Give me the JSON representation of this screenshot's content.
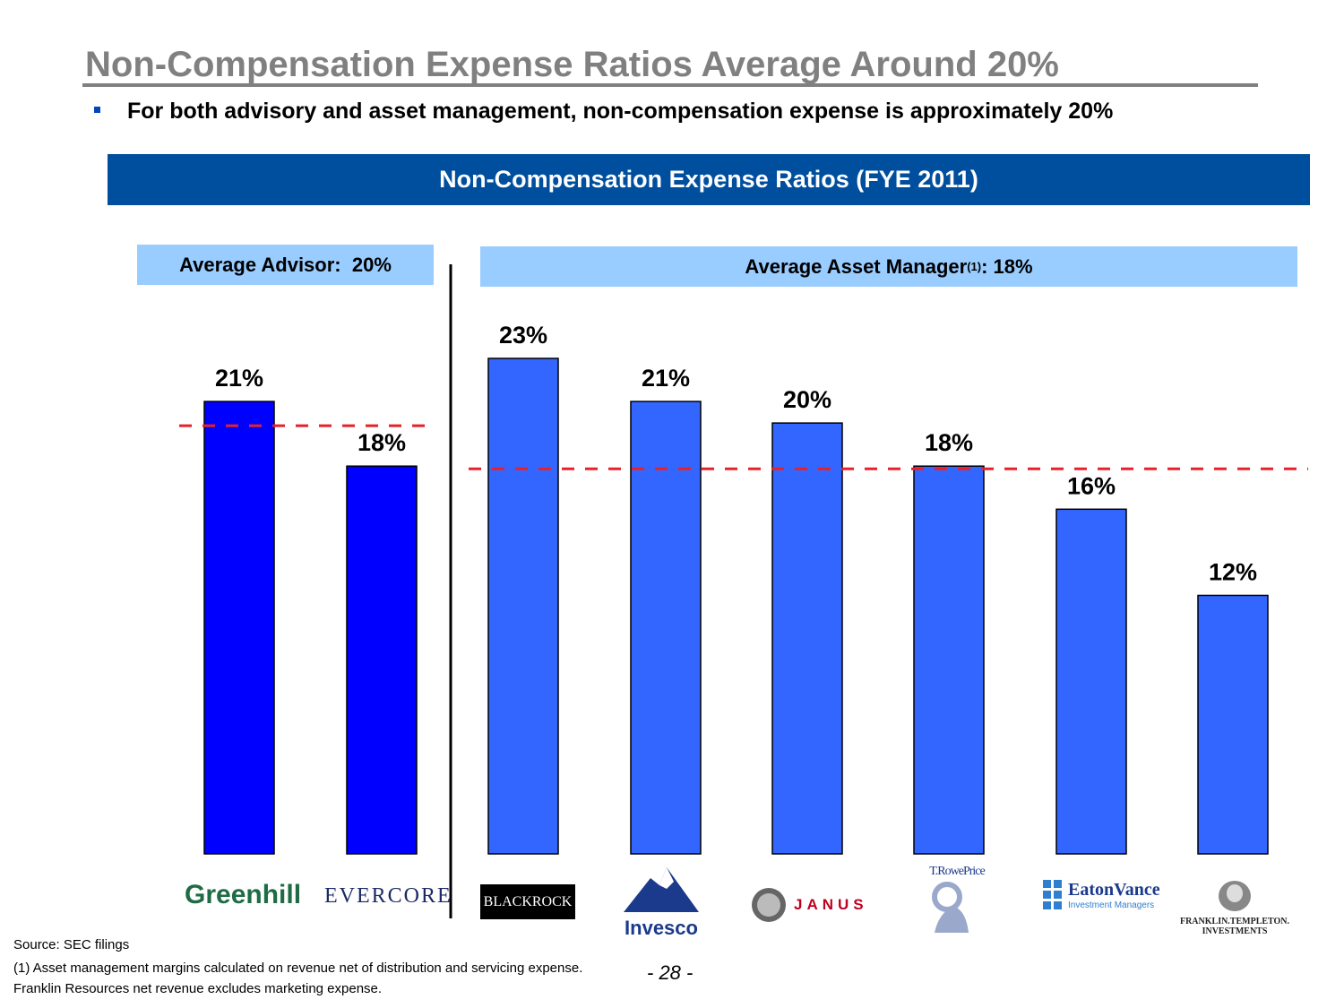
{
  "title": "Non-Compensation Expense Ratios Average Around 20%",
  "subtitle": "For both advisory and asset management, non-compensation expense is approximately 20%",
  "banner": "Non-Compensation Expense Ratios (FYE 2011)",
  "advisor_box": {
    "label": "Average Advisor:",
    "value": "20%"
  },
  "manager_box": {
    "label": "Average Asset Manager",
    "sup": "(1)",
    "value": ": 18%"
  },
  "colors": {
    "advisor_bar": "#0000ff",
    "manager_bar": "#3366ff",
    "avg_line": "#e8202a",
    "banner": "#004f9e",
    "box": "#99ccff"
  },
  "logos": {
    "greenhill": "Greenhill",
    "evercore": "EVERCORE",
    "blackrock": "BLACKROCK",
    "invesco": "Invesco",
    "janus": "JANUS",
    "troweprice": "T.RowePrice",
    "eatonvance_name": "EatonVance",
    "eatonvance_sub": "Investment Managers",
    "franklin_line1": "FRANKLIN.TEMPLETON.",
    "franklin_line2": "INVESTMENTS"
  },
  "chart_data": {
    "type": "bar",
    "categories": [
      "Greenhill",
      "Evercore",
      "BlackRock",
      "Invesco",
      "Janus",
      "T. Rowe Price",
      "Eaton Vance",
      "Franklin Templeton"
    ],
    "values": [
      21,
      18,
      23,
      21,
      20,
      18,
      16,
      12
    ],
    "labels": [
      "21%",
      "18%",
      "23%",
      "21%",
      "20%",
      "18%",
      "16%",
      "12%"
    ],
    "groups": [
      "advisor",
      "advisor",
      "manager",
      "manager",
      "manager",
      "manager",
      "manager",
      "manager"
    ],
    "averages": {
      "advisor": 20,
      "manager": 18
    },
    "title": "Non-Compensation Expense Ratios (FYE 2011)",
    "xlabel": "",
    "ylabel": "",
    "ylim": [
      0,
      23
    ]
  },
  "footer": {
    "source": "Source: SEC filings",
    "note": "(1) Asset management margins calculated on revenue net of distribution and servicing expense. Franklin Resources net revenue excludes marketing expense."
  },
  "page_number": "- 28 -"
}
